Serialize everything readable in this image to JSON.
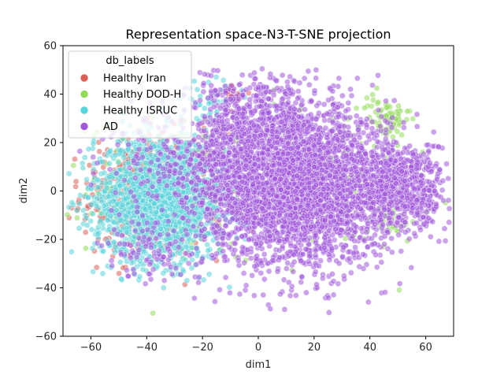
{
  "chart_data": {
    "type": "scatter",
    "title": "Representation space-N3-T-SNE projection",
    "xlabel": "dim1",
    "ylabel": "dim2",
    "xlim": [
      -70,
      70
    ],
    "ylim": [
      -60,
      60
    ],
    "xticks": [
      -60,
      -40,
      -20,
      0,
      20,
      40,
      60
    ],
    "yticks": [
      -60,
      -40,
      -20,
      0,
      20,
      40,
      60
    ],
    "grid": false,
    "legend": {
      "title": "db_labels",
      "placement": "top-left"
    },
    "series": [
      {
        "name": "Healthy Iran",
        "color": "#db5f57",
        "clusters": [
          {
            "cx": -38,
            "cy": -2,
            "sx": 15,
            "sy": 15,
            "n": 500
          },
          {
            "cx": -10,
            "cy": 40,
            "sx": 4,
            "sy": 3,
            "n": 20
          }
        ]
      },
      {
        "name": "Healthy DOD-H",
        "color": "#91db57",
        "clusters": [
          {
            "cx": -30,
            "cy": 2,
            "sx": 18,
            "sy": 16,
            "n": 160
          },
          {
            "cx": 25,
            "cy": 5,
            "sx": 22,
            "sy": 18,
            "n": 110
          },
          {
            "cx": 46,
            "cy": 30,
            "sx": 5,
            "sy": 5,
            "n": 70
          },
          {
            "cx": 48,
            "cy": -12,
            "sx": 5,
            "sy": 5,
            "n": 30
          }
        ]
      },
      {
        "name": "Healthy ISRUC",
        "color": "#57d3db",
        "clusters": [
          {
            "cx": -35,
            "cy": -3,
            "sx": 14,
            "sy": 15,
            "n": 1900
          },
          {
            "cx": -17,
            "cy": 38,
            "sx": 6,
            "sy": 4,
            "n": 40
          }
        ]
      },
      {
        "name": "AD",
        "color": "#a157db",
        "clusters": [
          {
            "cx": 15,
            "cy": 2,
            "sx": 18,
            "sy": 19,
            "n": 3000
          },
          {
            "cx": 52,
            "cy": 2,
            "sx": 9,
            "sy": 11,
            "n": 650
          },
          {
            "cx": 0,
            "cy": 30,
            "sx": 12,
            "sy": 10,
            "n": 350
          },
          {
            "cx": -10,
            "cy": 10,
            "sx": 7,
            "sy": 20,
            "n": 350
          },
          {
            "cx": -30,
            "cy": 12,
            "sx": 15,
            "sy": 14,
            "n": 180
          },
          {
            "cx": -35,
            "cy": -25,
            "sx": 12,
            "sy": 8,
            "n": 100
          }
        ]
      }
    ]
  }
}
